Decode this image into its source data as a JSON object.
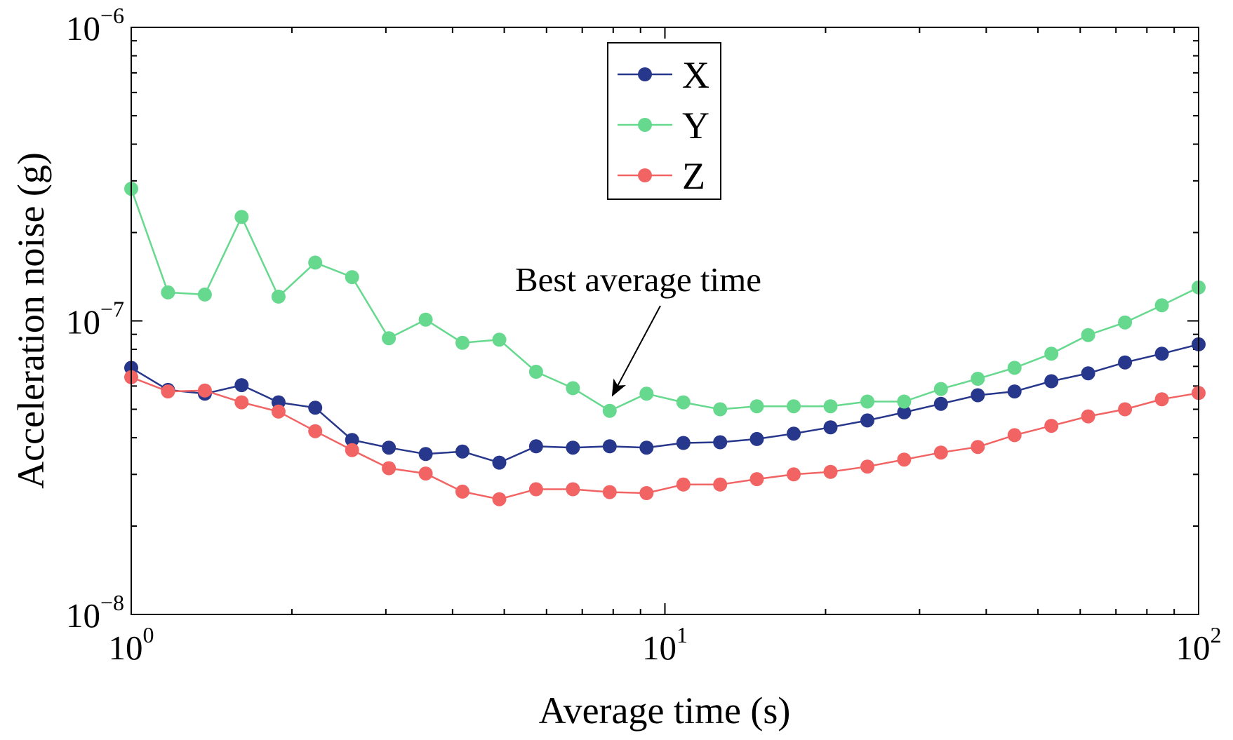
{
  "chart_data": {
    "type": "line",
    "xlabel": "Average time (s)",
    "ylabel": "Acceleration noise (g)",
    "xlim": [
      1,
      100
    ],
    "ylim": [
      1e-08,
      1e-06
    ],
    "xlog": true,
    "ylog": true,
    "x_tick_labels": [
      {
        "value": 1,
        "base": "10",
        "exp": "0"
      },
      {
        "value": 10,
        "base": "10",
        "exp": "1"
      },
      {
        "value": 100,
        "base": "10",
        "exp": "2"
      }
    ],
    "y_tick_labels": [
      {
        "value": 1e-08,
        "base": "10",
        "exp": "−8"
      },
      {
        "value": 1e-07,
        "base": "10",
        "exp": "−7"
      },
      {
        "value": 1e-06,
        "base": "10",
        "exp": "−6"
      }
    ],
    "x": [
      1,
      1.172,
      1.374,
      1.61,
      1.888,
      2.212,
      2.593,
      3.039,
      3.562,
      4.175,
      4.894,
      5.736,
      6.723,
      7.88,
      9.237,
      10.83,
      12.69,
      14.87,
      17.43,
      20.43,
      23.95,
      28.07,
      32.9,
      38.57,
      45.2,
      52.98,
      62.1,
      72.79,
      85.32,
      100
    ],
    "series": [
      {
        "name": "X",
        "color": "#27378c",
        "values": [
          6.92e-08,
          5.82e-08,
          5.65e-08,
          6.04e-08,
          5.28e-08,
          5.06e-08,
          3.93e-08,
          3.7e-08,
          3.52e-08,
          3.59e-08,
          3.29e-08,
          3.74e-08,
          3.7e-08,
          3.74e-08,
          3.7e-08,
          3.84e-08,
          3.86e-08,
          3.96e-08,
          4.13e-08,
          4.34e-08,
          4.58e-08,
          4.88e-08,
          5.22e-08,
          5.58e-08,
          5.75e-08,
          6.23e-08,
          6.63e-08,
          7.22e-08,
          7.73e-08,
          8.32e-08
        ]
      },
      {
        "name": "Y",
        "color": "#66d98e",
        "values": [
          2.82e-07,
          1.25e-07,
          1.23e-07,
          2.26e-07,
          1.21e-07,
          1.58e-07,
          1.41e-07,
          8.73e-08,
          1.01e-07,
          8.42e-08,
          8.63e-08,
          6.71e-08,
          5.9e-08,
          4.94e-08,
          5.65e-08,
          5.28e-08,
          5e-08,
          5.12e-08,
          5.12e-08,
          5.12e-08,
          5.31e-08,
          5.31e-08,
          5.86e-08,
          6.35e-08,
          6.92e-08,
          7.73e-08,
          8.95e-08,
          9.88e-08,
          1.13e-07,
          1.3e-07
        ]
      },
      {
        "name": "Z",
        "color": "#f26464",
        "values": [
          6.43e-08,
          5.75e-08,
          5.79e-08,
          5.28e-08,
          4.91e-08,
          4.21e-08,
          3.63e-08,
          3.15e-08,
          3.02e-08,
          2.62e-08,
          2.47e-08,
          2.67e-08,
          2.67e-08,
          2.61e-08,
          2.59e-08,
          2.77e-08,
          2.77e-08,
          2.89e-08,
          3e-08,
          3.06e-08,
          3.19e-08,
          3.37e-08,
          3.56e-08,
          3.72e-08,
          4.08e-08,
          4.39e-08,
          4.73e-08,
          5e-08,
          5.41e-08,
          5.68e-08
        ]
      }
    ],
    "annotation": {
      "text": "Best average time",
      "x": 7.88,
      "y": 4.94e-08
    }
  }
}
